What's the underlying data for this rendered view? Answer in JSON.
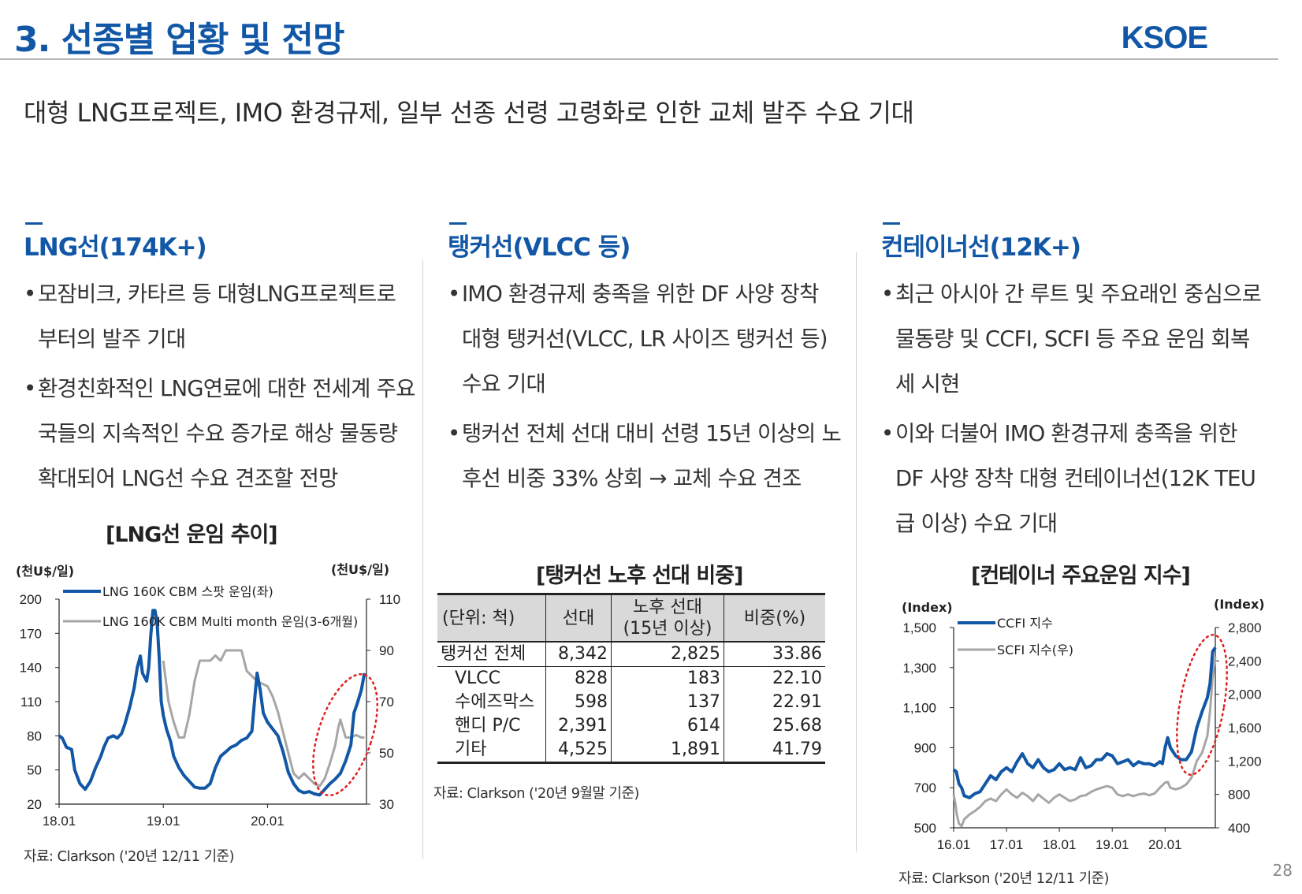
{
  "header": {
    "title": "3. 선종별 업황 및 전망",
    "logo": "KSOE"
  },
  "subtitle": "대형 LNG프로젝트, IMO 환경규제, 일부 선종 선령 고령화로 인한 교체 발주 수요 기대",
  "columns": {
    "lng": {
      "heading": "LNG선(174K+)",
      "bullets": [
        "모잠비크, 카타르 등 대형LNG프로젝트로 부터의 발주 기대",
        "환경친화적인 LNG연료에 대한 전세계 주요국들의 지속적인 수요 증가로 해상 물동량 확대되어 LNG선 수요 견조할 전망"
      ],
      "chart_title": "[LNG선 운임 추이]",
      "source": "자료: Clarkson ('20년 12/11 기준)"
    },
    "tanker": {
      "heading": "탱커선(VLCC 등)",
      "bullets": [
        "IMO 환경규제 충족을 위한 DF 사양 장착 대형 탱커선(VLCC, LR 사이즈 탱커선 등) 수요 기대",
        "탱커선 전체 선대 대비 선령 15년 이상의 노후선 비중 33% 상회 → 교체 수요 견조"
      ],
      "table_title": "[탱커선 노후 선대 비중]",
      "source": "자료: Clarkson ('20년 9월말 기준)"
    },
    "container": {
      "heading": "컨테이너선(12K+)",
      "bullets": [
        "최근 아시아 간 루트 및 주요래인 중심으로 물동량 및 CCFI, SCFI 등 주요 운임 회복세 시현",
        "이와 더불어 IMO 환경규제 충족을 위한 DF 사양 장착 대형 컨테이너선(12K TEU급 이상) 수요 기대"
      ],
      "chart_title": "[컨테이너 주요운임 지수]",
      "source": "자료: Clarkson ('20년 12/11 기준)"
    }
  },
  "page_number": "28",
  "chart_data": [
    {
      "type": "line",
      "title": "[LNG선 운임 추이]",
      "y_unit_left": "(천U$/일)",
      "y_unit_right": "(천U$/일)",
      "ylim_left": [
        20,
        200
      ],
      "yticks_left": [
        "200",
        "170",
        "140",
        "110",
        "80",
        "50",
        "20"
      ],
      "ylim_right": [
        30,
        110
      ],
      "yticks_right": [
        "110",
        "90",
        "70",
        "50",
        "30"
      ],
      "x_range": [
        2018.0,
        2020.95
      ],
      "xticks": [
        {
          "label": "18.01",
          "x": 2018.0
        },
        {
          "label": "19.01",
          "x": 2019.0
        },
        {
          "label": "20.01",
          "x": 2020.0
        }
      ],
      "grid": false,
      "legend_position": "top-left",
      "series": [
        {
          "name": "LNG 160K CBM 스팟 운임(좌)",
          "axis": "left",
          "color": "#1257a6",
          "points": [
            [
              2018.0,
              80
            ],
            [
              2018.03,
              78
            ],
            [
              2018.07,
              70
            ],
            [
              2018.12,
              68
            ],
            [
              2018.15,
              50
            ],
            [
              2018.2,
              38
            ],
            [
              2018.25,
              33
            ],
            [
              2018.3,
              40
            ],
            [
              2018.35,
              52
            ],
            [
              2018.4,
              62
            ],
            [
              2018.43,
              70
            ],
            [
              2018.47,
              78
            ],
            [
              2018.52,
              80
            ],
            [
              2018.56,
              78
            ],
            [
              2018.6,
              82
            ],
            [
              2018.63,
              90
            ],
            [
              2018.68,
              106
            ],
            [
              2018.72,
              122
            ],
            [
              2018.75,
              140
            ],
            [
              2018.78,
              150
            ],
            [
              2018.8,
              135
            ],
            [
              2018.84,
              128
            ],
            [
              2018.86,
              140
            ],
            [
              2018.88,
              168
            ],
            [
              2018.9,
              190
            ],
            [
              2018.92,
              190
            ],
            [
              2018.94,
              180
            ],
            [
              2018.96,
              150
            ],
            [
              2018.98,
              110
            ],
            [
              2019.0,
              98
            ],
            [
              2019.03,
              86
            ],
            [
              2019.07,
              75
            ],
            [
              2019.1,
              62
            ],
            [
              2019.15,
              52
            ],
            [
              2019.2,
              45
            ],
            [
              2019.25,
              40
            ],
            [
              2019.3,
              35
            ],
            [
              2019.35,
              34
            ],
            [
              2019.4,
              34
            ],
            [
              2019.45,
              38
            ],
            [
              2019.5,
              52
            ],
            [
              2019.55,
              62
            ],
            [
              2019.6,
              66
            ],
            [
              2019.65,
              70
            ],
            [
              2019.7,
              72
            ],
            [
              2019.75,
              76
            ],
            [
              2019.8,
              78
            ],
            [
              2019.85,
              84
            ],
            [
              2019.88,
              115
            ],
            [
              2019.9,
              135
            ],
            [
              2019.93,
              120
            ],
            [
              2019.96,
              100
            ],
            [
              2020.0,
              92
            ],
            [
              2020.05,
              86
            ],
            [
              2020.1,
              80
            ],
            [
              2020.15,
              66
            ],
            [
              2020.2,
              48
            ],
            [
              2020.25,
              38
            ],
            [
              2020.3,
              32
            ],
            [
              2020.35,
              30
            ],
            [
              2020.4,
              31
            ],
            [
              2020.45,
              29
            ],
            [
              2020.5,
              28
            ],
            [
              2020.55,
              33
            ],
            [
              2020.6,
              38
            ],
            [
              2020.65,
              42
            ],
            [
              2020.7,
              47
            ],
            [
              2020.75,
              58
            ],
            [
              2020.8,
              72
            ],
            [
              2020.83,
              100
            ],
            [
              2020.86,
              108
            ],
            [
              2020.9,
              120
            ],
            [
              2020.93,
              135
            ]
          ]
        },
        {
          "name": "LNG 160K CBM Multi month 운임(3-6개월)",
          "axis": "right",
          "color": "#a6a6a6",
          "points": [
            [
              2019.0,
              86
            ],
            [
              2019.05,
              70
            ],
            [
              2019.1,
              62
            ],
            [
              2019.15,
              56
            ],
            [
              2019.2,
              56
            ],
            [
              2019.25,
              65
            ],
            [
              2019.3,
              78
            ],
            [
              2019.35,
              86
            ],
            [
              2019.4,
              86
            ],
            [
              2019.45,
              86
            ],
            [
              2019.5,
              88
            ],
            [
              2019.55,
              86
            ],
            [
              2019.6,
              90
            ],
            [
              2019.65,
              90
            ],
            [
              2019.7,
              90
            ],
            [
              2019.75,
              90
            ],
            [
              2019.8,
              82
            ],
            [
              2019.85,
              80
            ],
            [
              2019.9,
              78
            ],
            [
              2019.95,
              77
            ],
            [
              2020.0,
              76
            ],
            [
              2020.05,
              72
            ],
            [
              2020.1,
              66
            ],
            [
              2020.15,
              58
            ],
            [
              2020.2,
              50
            ],
            [
              2020.25,
              42
            ],
            [
              2020.3,
              40
            ],
            [
              2020.35,
              42
            ],
            [
              2020.4,
              40
            ],
            [
              2020.45,
              38
            ],
            [
              2020.5,
              37
            ],
            [
              2020.55,
              40
            ],
            [
              2020.6,
              46
            ],
            [
              2020.65,
              53
            ],
            [
              2020.68,
              60
            ],
            [
              2020.7,
              63
            ],
            [
              2020.75,
              56
            ],
            [
              2020.8,
              56
            ],
            [
              2020.85,
              57
            ],
            [
              2020.9,
              56
            ],
            [
              2020.93,
              56
            ]
          ]
        }
      ]
    },
    {
      "type": "table",
      "title": "[탱커선 노후 선대 비중]",
      "headers": [
        "(단위: 척)",
        "선대",
        "노후 선대 (15년 이상)",
        "비중(%)"
      ],
      "rows": [
        [
          "탱커선 전체",
          "8,342",
          "2,825",
          "33.86"
        ],
        [
          "VLCC",
          "828",
          "183",
          "22.10"
        ],
        [
          "수에즈막스",
          "598",
          "137",
          "22.91"
        ],
        [
          "핸디 P/C",
          "2,391",
          "614",
          "25.68"
        ],
        [
          "기타",
          "4,525",
          "1,891",
          "41.79"
        ]
      ]
    },
    {
      "type": "line",
      "title": "[컨테이너 주요운임 지수]",
      "y_unit_left": "(Index)",
      "y_unit_right": "(Index)",
      "ylim_left": [
        500,
        1500
      ],
      "yticks_left": [
        "1,500",
        "1,300",
        "1,100",
        "900",
        "700",
        "500"
      ],
      "ylim_right": [
        400,
        2800
      ],
      "yticks_right": [
        "2,800",
        "2,400",
        "2,000",
        "1,600",
        "1,200",
        "800",
        "400"
      ],
      "x_range": [
        2016.0,
        2020.95
      ],
      "xticks": [
        {
          "label": "16.01",
          "x": 2016.0
        },
        {
          "label": "17.01",
          "x": 2017.0
        },
        {
          "label": "18.01",
          "x": 2018.0
        },
        {
          "label": "19.01",
          "x": 2019.0
        },
        {
          "label": "20.01",
          "x": 2020.0
        }
      ],
      "grid": false,
      "legend_position": "top-left",
      "series": [
        {
          "name": "CCFI 지수",
          "axis": "left",
          "color": "#1257a6",
          "points": [
            [
              2016.0,
              790
            ],
            [
              2016.05,
              780
            ],
            [
              2016.1,
              720
            ],
            [
              2016.15,
              700
            ],
            [
              2016.2,
              660
            ],
            [
              2016.3,
              650
            ],
            [
              2016.4,
              670
            ],
            [
              2016.5,
              680
            ],
            [
              2016.6,
              720
            ],
            [
              2016.7,
              760
            ],
            [
              2016.8,
              740
            ],
            [
              2016.9,
              780
            ],
            [
              2017.0,
              800
            ],
            [
              2017.1,
              780
            ],
            [
              2017.2,
              830
            ],
            [
              2017.3,
              870
            ],
            [
              2017.4,
              820
            ],
            [
              2017.5,
              800
            ],
            [
              2017.6,
              840
            ],
            [
              2017.7,
              800
            ],
            [
              2017.8,
              780
            ],
            [
              2017.9,
              790
            ],
            [
              2018.0,
              820
            ],
            [
              2018.1,
              790
            ],
            [
              2018.2,
              800
            ],
            [
              2018.3,
              790
            ],
            [
              2018.4,
              850
            ],
            [
              2018.5,
              800
            ],
            [
              2018.6,
              810
            ],
            [
              2018.7,
              840
            ],
            [
              2018.8,
              840
            ],
            [
              2018.9,
              870
            ],
            [
              2019.0,
              860
            ],
            [
              2019.1,
              820
            ],
            [
              2019.2,
              830
            ],
            [
              2019.3,
              840
            ],
            [
              2019.4,
              810
            ],
            [
              2019.5,
              830
            ],
            [
              2019.6,
              820
            ],
            [
              2019.7,
              820
            ],
            [
              2019.8,
              810
            ],
            [
              2019.9,
              830
            ],
            [
              2019.95,
              820
            ],
            [
              2020.0,
              900
            ],
            [
              2020.05,
              950
            ],
            [
              2020.1,
              900
            ],
            [
              2020.15,
              880
            ],
            [
              2020.2,
              860
            ],
            [
              2020.3,
              840
            ],
            [
              2020.4,
              840
            ],
            [
              2020.45,
              860
            ],
            [
              2020.5,
              880
            ],
            [
              2020.6,
              1000
            ],
            [
              2020.7,
              1080
            ],
            [
              2020.8,
              1150
            ],
            [
              2020.85,
              1220
            ],
            [
              2020.9,
              1380
            ],
            [
              2020.95,
              1400
            ]
          ]
        },
        {
          "name": "SCFI 지수(우)",
          "axis": "right",
          "color": "#a6a6a6",
          "points": [
            [
              2016.0,
              800
            ],
            [
              2016.03,
              700
            ],
            [
              2016.06,
              560
            ],
            [
              2016.1,
              450
            ],
            [
              2016.15,
              420
            ],
            [
              2016.2,
              500
            ],
            [
              2016.3,
              560
            ],
            [
              2016.4,
              600
            ],
            [
              2016.5,
              650
            ],
            [
              2016.6,
              720
            ],
            [
              2016.7,
              750
            ],
            [
              2016.8,
              720
            ],
            [
              2016.9,
              800
            ],
            [
              2017.0,
              860
            ],
            [
              2017.1,
              800
            ],
            [
              2017.2,
              760
            ],
            [
              2017.3,
              820
            ],
            [
              2017.4,
              780
            ],
            [
              2017.5,
              720
            ],
            [
              2017.6,
              800
            ],
            [
              2017.7,
              750
            ],
            [
              2017.8,
              700
            ],
            [
              2017.9,
              760
            ],
            [
              2018.0,
              800
            ],
            [
              2018.1,
              760
            ],
            [
              2018.2,
              720
            ],
            [
              2018.3,
              740
            ],
            [
              2018.4,
              780
            ],
            [
              2018.5,
              790
            ],
            [
              2018.6,
              830
            ],
            [
              2018.7,
              860
            ],
            [
              2018.8,
              880
            ],
            [
              2018.9,
              900
            ],
            [
              2019.0,
              880
            ],
            [
              2019.1,
              800
            ],
            [
              2019.2,
              780
            ],
            [
              2019.3,
              800
            ],
            [
              2019.4,
              780
            ],
            [
              2019.5,
              800
            ],
            [
              2019.6,
              810
            ],
            [
              2019.7,
              790
            ],
            [
              2019.8,
              810
            ],
            [
              2019.9,
              880
            ],
            [
              2020.0,
              940
            ],
            [
              2020.05,
              950
            ],
            [
              2020.1,
              880
            ],
            [
              2020.2,
              860
            ],
            [
              2020.3,
              880
            ],
            [
              2020.4,
              920
            ],
            [
              2020.5,
              1000
            ],
            [
              2020.6,
              1200
            ],
            [
              2020.7,
              1300
            ],
            [
              2020.8,
              1500
            ],
            [
              2020.85,
              1800
            ],
            [
              2020.9,
              2200
            ],
            [
              2020.95,
              2450
            ]
          ]
        }
      ]
    }
  ]
}
